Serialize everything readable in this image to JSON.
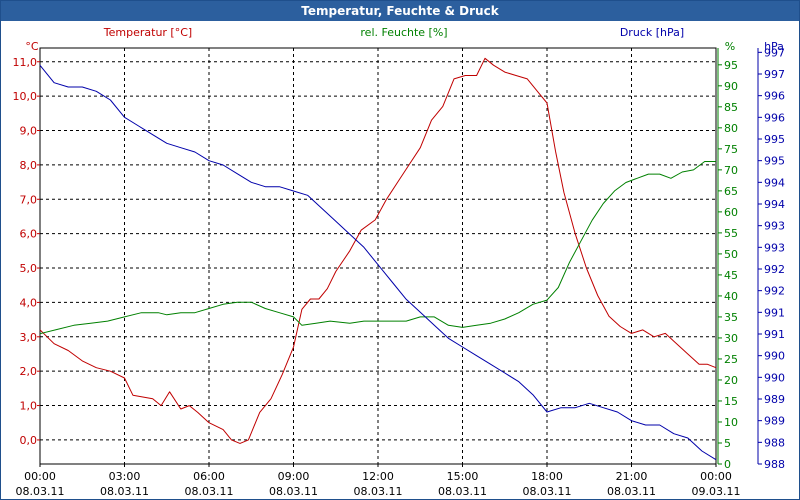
{
  "window": {
    "title": "Temperatur, Feuchte & Druck"
  },
  "legend": {
    "temperature": "Temperatur [°C]",
    "humidity": "rel. Feuchte [%]",
    "pressure": "Druck [hPa]"
  },
  "colors": {
    "temperature": "#c00000",
    "humidity": "#008000",
    "pressure": "#0000aa",
    "grid": "#000000",
    "title_bg": "#2c5f9e"
  },
  "chart_data": {
    "type": "line",
    "title": "Temperatur, Feuchte & Druck",
    "x_ticks": [
      {
        "hours": 0,
        "time": "00:00",
        "date": "08.03.11"
      },
      {
        "hours": 3,
        "time": "03:00",
        "date": "08.03.11"
      },
      {
        "hours": 6,
        "time": "06:00",
        "date": "08.03.11"
      },
      {
        "hours": 9,
        "time": "09:00",
        "date": "08.03.11"
      },
      {
        "hours": 12,
        "time": "12:00",
        "date": "08.03.11"
      },
      {
        "hours": 15,
        "time": "15:00",
        "date": "08.03.11"
      },
      {
        "hours": 18,
        "time": "18:00",
        "date": "08.03.11"
      },
      {
        "hours": 21,
        "time": "21:00",
        "date": "08.03.11"
      },
      {
        "hours": 24,
        "time": "00:00",
        "date": "09.03.11"
      }
    ],
    "xlim": [
      0,
      24
    ],
    "axes": {
      "temperature": {
        "unit": "°C",
        "range": [
          -0.7,
          11.4
        ],
        "ticks": [
          {
            "value": 0,
            "label": "0,0"
          },
          {
            "value": 1,
            "label": "1,0"
          },
          {
            "value": 2,
            "label": "2,0"
          },
          {
            "value": 3,
            "label": "3,0"
          },
          {
            "value": 4,
            "label": "4,0"
          },
          {
            "value": 5,
            "label": "5,0"
          },
          {
            "value": 6,
            "label": "6,0"
          },
          {
            "value": 7,
            "label": "7,0"
          },
          {
            "value": 8,
            "label": "8,0"
          },
          {
            "value": 9,
            "label": "9,0"
          },
          {
            "value": 10,
            "label": "10,0"
          },
          {
            "value": 11,
            "label": "11,0"
          }
        ]
      },
      "humidity": {
        "unit": "%",
        "range": [
          0,
          99
        ],
        "ticks": [
          0,
          5,
          10,
          15,
          20,
          25,
          30,
          35,
          40,
          45,
          50,
          55,
          60,
          65,
          70,
          75,
          80,
          85,
          90,
          95
        ]
      },
      "pressure": {
        "unit": "hPa",
        "range": [
          988,
          997.6
        ],
        "ticks": [
          {
            "value": 988.0,
            "label": "988"
          },
          {
            "value": 988.5,
            "label": "988"
          },
          {
            "value": 989.0,
            "label": "989"
          },
          {
            "value": 989.5,
            "label": "989"
          },
          {
            "value": 990.0,
            "label": "990"
          },
          {
            "value": 990.5,
            "label": "990"
          },
          {
            "value": 991.0,
            "label": "991"
          },
          {
            "value": 991.5,
            "label": "991"
          },
          {
            "value": 992.0,
            "label": "992"
          },
          {
            "value": 992.5,
            "label": "992"
          },
          {
            "value": 993.0,
            "label": "993"
          },
          {
            "value": 993.5,
            "label": "993"
          },
          {
            "value": 994.0,
            "label": "994"
          },
          {
            "value": 994.5,
            "label": "994"
          },
          {
            "value": 995.0,
            "label": "995"
          },
          {
            "value": 995.5,
            "label": "995"
          },
          {
            "value": 996.0,
            "label": "996"
          },
          {
            "value": 996.5,
            "label": "996"
          },
          {
            "value": 997.0,
            "label": "997"
          },
          {
            "value": 997.5,
            "label": "997"
          }
        ]
      }
    },
    "series": [
      {
        "name": "Temperatur [°C]",
        "key": "temperature",
        "axis": "temperature",
        "points": [
          [
            0,
            3.2
          ],
          [
            0.5,
            2.8
          ],
          [
            1,
            2.6
          ],
          [
            1.5,
            2.3
          ],
          [
            2,
            2.1
          ],
          [
            2.5,
            2.0
          ],
          [
            3,
            1.8
          ],
          [
            3.3,
            1.3
          ],
          [
            4,
            1.2
          ],
          [
            4.3,
            1.0
          ],
          [
            4.6,
            1.4
          ],
          [
            5,
            0.9
          ],
          [
            5.3,
            1.0
          ],
          [
            5.6,
            0.8
          ],
          [
            6,
            0.5
          ],
          [
            6.5,
            0.3
          ],
          [
            6.8,
            0.0
          ],
          [
            7.1,
            -0.1
          ],
          [
            7.4,
            0.0
          ],
          [
            7.8,
            0.8
          ],
          [
            8.2,
            1.2
          ],
          [
            8.6,
            1.9
          ],
          [
            9,
            2.7
          ],
          [
            9.3,
            3.8
          ],
          [
            9.6,
            4.1
          ],
          [
            9.9,
            4.1
          ],
          [
            10.2,
            4.4
          ],
          [
            10.5,
            4.9
          ],
          [
            11,
            5.5
          ],
          [
            11.4,
            6.1
          ],
          [
            11.9,
            6.4
          ],
          [
            12.3,
            7.0
          ],
          [
            12.7,
            7.5
          ],
          [
            13.1,
            8.0
          ],
          [
            13.5,
            8.5
          ],
          [
            13.9,
            9.3
          ],
          [
            14.3,
            9.7
          ],
          [
            14.7,
            10.5
          ],
          [
            15.1,
            10.6
          ],
          [
            15.5,
            10.6
          ],
          [
            15.8,
            11.1
          ],
          [
            16.1,
            10.9
          ],
          [
            16.5,
            10.7
          ],
          [
            16.9,
            10.6
          ],
          [
            17.3,
            10.5
          ],
          [
            17.7,
            10.1
          ],
          [
            18,
            9.8
          ],
          [
            18.3,
            8.4
          ],
          [
            18.6,
            7.2
          ],
          [
            19,
            6.0
          ],
          [
            19.4,
            5.0
          ],
          [
            19.8,
            4.2
          ],
          [
            20.2,
            3.6
          ],
          [
            20.6,
            3.3
          ],
          [
            21,
            3.1
          ],
          [
            21.4,
            3.2
          ],
          [
            21.8,
            3.0
          ],
          [
            22.2,
            3.1
          ],
          [
            22.6,
            2.8
          ],
          [
            23,
            2.5
          ],
          [
            23.4,
            2.2
          ],
          [
            23.7,
            2.2
          ],
          [
            24,
            2.1
          ]
        ]
      },
      {
        "name": "rel. Feuchte [%]",
        "key": "humidity",
        "axis": "humidity",
        "points": [
          [
            0,
            31
          ],
          [
            0.6,
            32
          ],
          [
            1.2,
            33
          ],
          [
            1.8,
            33.5
          ],
          [
            2.4,
            34
          ],
          [
            3,
            35
          ],
          [
            3.6,
            36
          ],
          [
            4.2,
            36
          ],
          [
            4.5,
            35.5
          ],
          [
            5,
            36
          ],
          [
            5.5,
            36
          ],
          [
            6,
            37
          ],
          [
            6.5,
            38
          ],
          [
            7,
            38.5
          ],
          [
            7.5,
            38.5
          ],
          [
            8,
            37
          ],
          [
            8.5,
            36
          ],
          [
            9,
            35
          ],
          [
            9.3,
            33
          ],
          [
            9.8,
            33.5
          ],
          [
            10.3,
            34
          ],
          [
            11,
            33.5
          ],
          [
            11.5,
            34
          ],
          [
            12,
            34
          ],
          [
            12.5,
            34
          ],
          [
            13,
            34
          ],
          [
            13.5,
            35
          ],
          [
            14,
            35
          ],
          [
            14.5,
            33
          ],
          [
            15,
            32.5
          ],
          [
            15.5,
            33
          ],
          [
            16,
            33.5
          ],
          [
            16.5,
            34.5
          ],
          [
            17,
            36
          ],
          [
            17.5,
            38
          ],
          [
            18,
            39
          ],
          [
            18.4,
            42
          ],
          [
            18.8,
            48
          ],
          [
            19.2,
            53
          ],
          [
            19.6,
            58
          ],
          [
            20,
            62
          ],
          [
            20.4,
            65
          ],
          [
            20.8,
            67
          ],
          [
            21.2,
            68
          ],
          [
            21.6,
            69
          ],
          [
            22,
            69
          ],
          [
            22.4,
            68
          ],
          [
            22.8,
            69.5
          ],
          [
            23.2,
            70
          ],
          [
            23.6,
            72
          ],
          [
            24,
            72
          ]
        ]
      },
      {
        "name": "Druck [hPa]",
        "key": "pressure",
        "axis": "pressure",
        "points": [
          [
            0,
            997.2
          ],
          [
            0.5,
            996.8
          ],
          [
            1,
            996.7
          ],
          [
            1.5,
            996.7
          ],
          [
            2,
            996.6
          ],
          [
            2.5,
            996.4
          ],
          [
            3,
            996.0
          ],
          [
            3.5,
            995.8
          ],
          [
            4,
            995.6
          ],
          [
            4.5,
            995.4
          ],
          [
            5,
            995.3
          ],
          [
            5.5,
            995.2
          ],
          [
            6,
            995.0
          ],
          [
            6.5,
            994.9
          ],
          [
            7,
            994.7
          ],
          [
            7.5,
            994.5
          ],
          [
            8,
            994.4
          ],
          [
            8.5,
            994.4
          ],
          [
            9,
            994.3
          ],
          [
            9.5,
            994.2
          ],
          [
            10,
            993.9
          ],
          [
            10.5,
            993.6
          ],
          [
            11,
            993.3
          ],
          [
            11.5,
            993.0
          ],
          [
            12,
            992.6
          ],
          [
            12.5,
            992.2
          ],
          [
            13,
            991.8
          ],
          [
            13.5,
            991.5
          ],
          [
            14,
            991.2
          ],
          [
            14.5,
            990.9
          ],
          [
            15,
            990.7
          ],
          [
            15.5,
            990.5
          ],
          [
            16,
            990.3
          ],
          [
            16.5,
            990.1
          ],
          [
            17,
            989.9
          ],
          [
            17.5,
            989.6
          ],
          [
            18,
            989.2
          ],
          [
            18.5,
            989.3
          ],
          [
            19,
            989.3
          ],
          [
            19.5,
            989.4
          ],
          [
            20,
            989.3
          ],
          [
            20.5,
            989.2
          ],
          [
            21,
            989.0
          ],
          [
            21.5,
            988.9
          ],
          [
            22,
            988.9
          ],
          [
            22.5,
            988.7
          ],
          [
            23,
            988.6
          ],
          [
            23.5,
            988.3
          ],
          [
            24,
            988.1
          ]
        ]
      }
    ]
  }
}
